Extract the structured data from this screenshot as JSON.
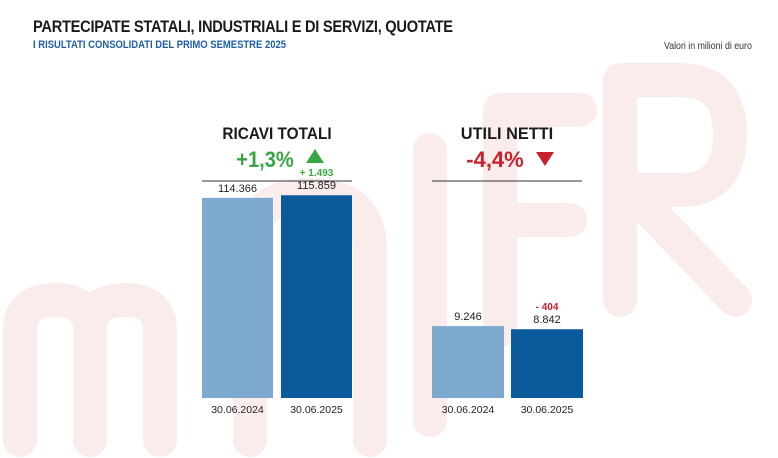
{
  "header": {
    "title": "PARTECIPATE STATALI, INDUSTRIALI E DI SERVIZI, QUOTATE",
    "subtitle": "I RISULTATI CONSOLIDATI DEL PRIMO SEMESTRE 2025",
    "units": "Valori in milioni di euro"
  },
  "colors": {
    "bar_2024": "#7ea9cf",
    "bar_2025": "#0b5a9c",
    "positive": "#3aa543",
    "negative": "#c8202e"
  },
  "chart_data": [
    {
      "type": "bar",
      "title": "RICAVI TOTALI",
      "change": "+1,3%",
      "direction": "up",
      "categories": [
        "30.06.2024",
        "30.06.2025"
      ],
      "values": [
        114366,
        115859
      ],
      "value_labels": [
        "114.366",
        "115.859"
      ],
      "delta_label": "+ 1.493",
      "ylim": [
        0,
        160000
      ]
    },
    {
      "type": "bar",
      "title": "UTILI NETTI",
      "change": "-4,4%",
      "direction": "down",
      "categories": [
        "30.06.2024",
        "30.06.2025"
      ],
      "values": [
        9246,
        8842
      ],
      "value_labels": [
        "9.246",
        "8.842"
      ],
      "delta_label": "- 404",
      "ylim": [
        0,
        36000
      ]
    }
  ]
}
